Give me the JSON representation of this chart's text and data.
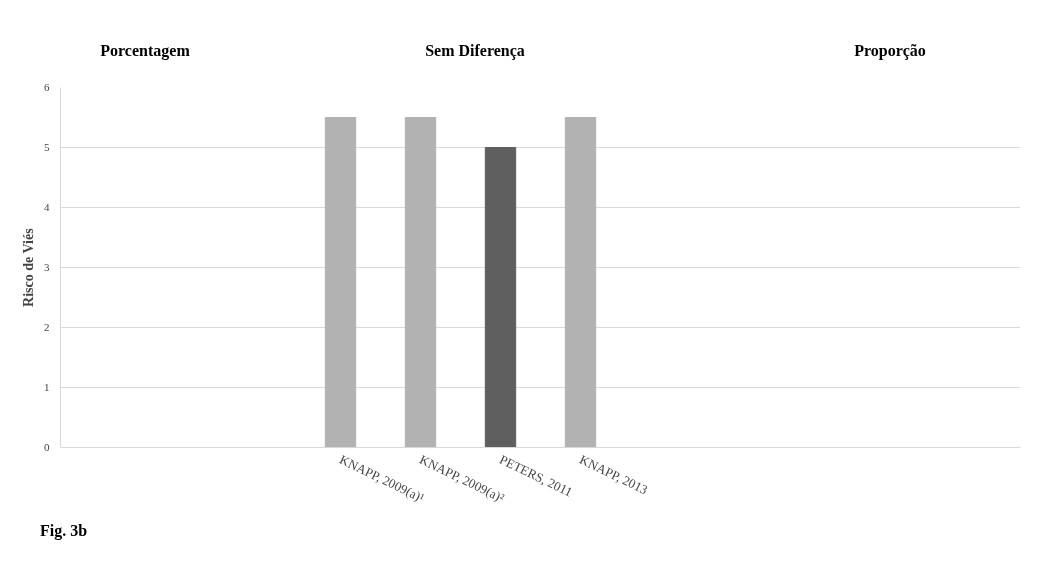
{
  "chart_data": {
    "type": "bar",
    "ylabel": "Risco de Viés",
    "categories": [
      null,
      null,
      null,
      "KNAPP, 2009(a)¹",
      "KNAPP, 2009(a)²",
      "PETERS, 2011",
      "KNAPP, 2013",
      null,
      null,
      null,
      null,
      null
    ],
    "values": [
      null,
      null,
      null,
      5.5,
      5.5,
      5,
      5.5,
      null,
      null,
      null,
      null,
      null
    ],
    "colors": [
      "#b2b2b2",
      "#b2b2b2",
      "#b2b2b2",
      "#b2b2b2",
      "#b2b2b2",
      "#5f5f5f",
      "#b2b2b2",
      "#b2b2b2",
      "#b2b2b2",
      "#b2b2b2",
      "#b2b2b2",
      "#b2b2b2"
    ],
    "ylim": [
      0,
      6
    ],
    "yticks": [
      0,
      1,
      2,
      3,
      4,
      5,
      6
    ],
    "grid": "y",
    "annotations": [
      "Porcentagem",
      "Sem Diferença",
      "Proporção",
      "Fig. 3b"
    ]
  }
}
